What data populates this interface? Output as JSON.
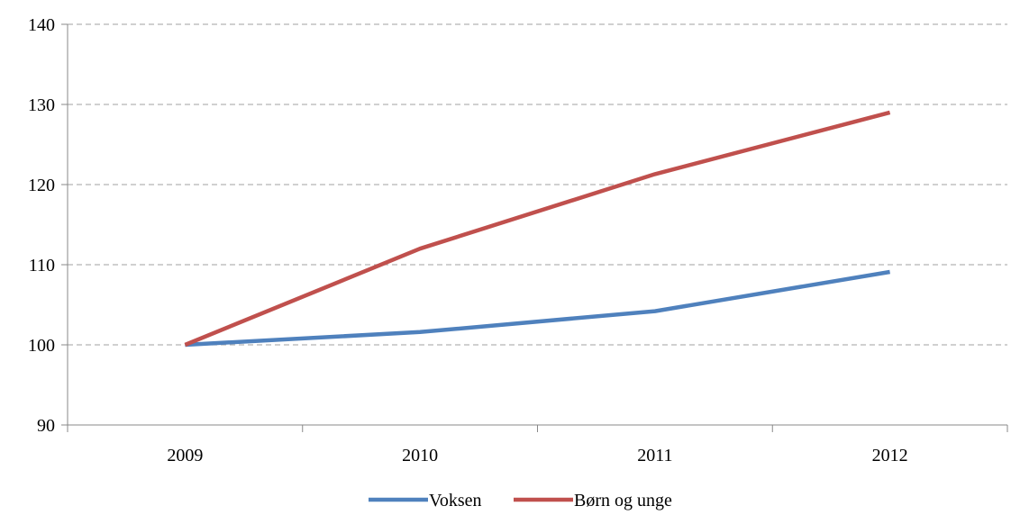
{
  "chart_data": {
    "type": "line",
    "title": "",
    "xlabel": "",
    "ylabel": "",
    "categories": [
      "2009",
      "2010",
      "2011",
      "2012"
    ],
    "yticks": [
      "90",
      "100",
      "110",
      "120",
      "130",
      "140"
    ],
    "ylim": [
      90,
      140
    ],
    "grid": true,
    "legend_position": "bottom",
    "series": [
      {
        "name": "Voksen",
        "color": "#4f81bd",
        "values": [
          100,
          101.6,
          104.2,
          109.1
        ]
      },
      {
        "name": "Børn og unge",
        "color": "#c0504d",
        "values": [
          100,
          112,
          121.3,
          129
        ]
      }
    ]
  }
}
